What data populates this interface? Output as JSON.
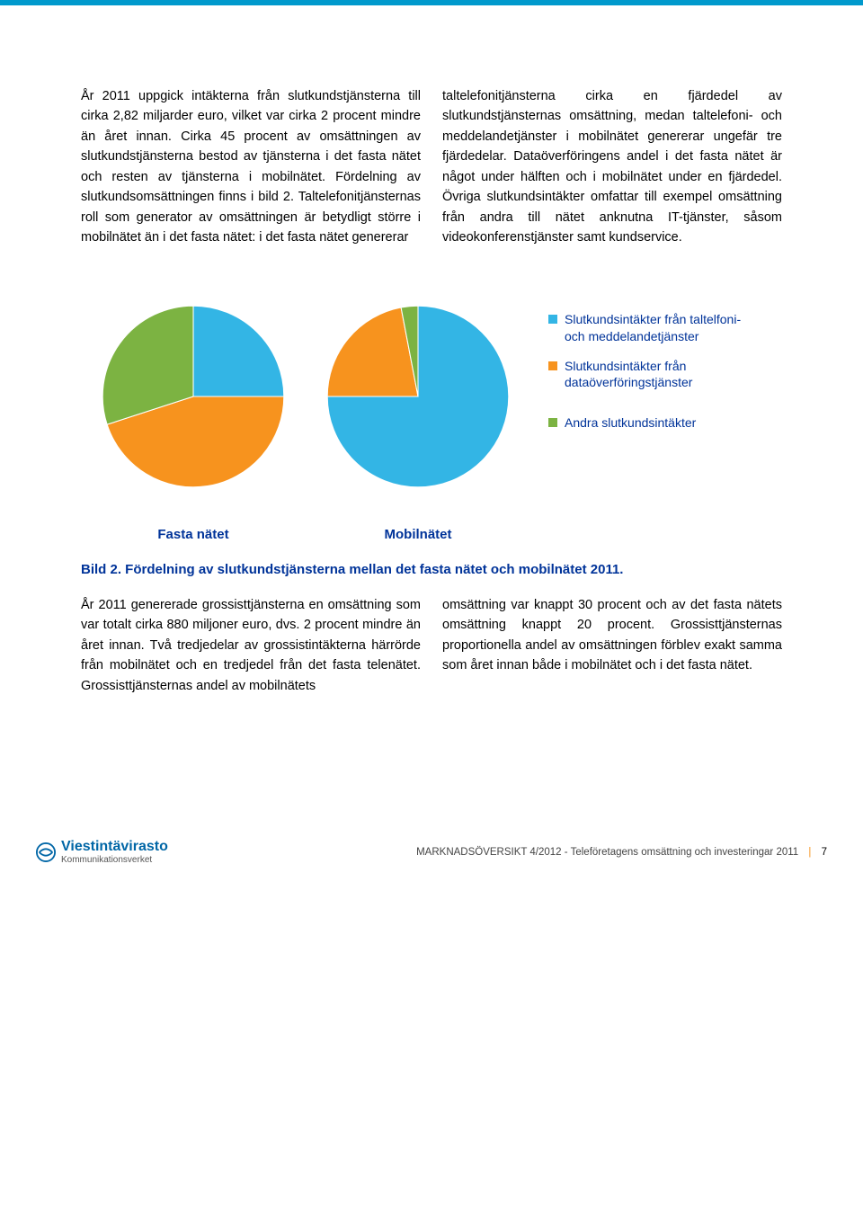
{
  "topbar_color": "#0099cc",
  "paragraph_top": "År 2011 uppgick intäkterna från slutkundstjänsterna till cirka 2,82 miljarder euro, vilket var cirka 2 procent mindre än året innan. Cirka 45 procent av omsättningen av slutkundstjänsterna bestod av tjänsterna i det fasta nätet och resten av tjänsterna i mobilnätet. Fördelning av slutkundsomsättningen finns i bild 2. Taltelefonitjänsternas roll som generator av omsättningen är betydligt större i mobilnätet än i det fasta nätet: i det fasta nätet genererar taltelefonitjänsterna cirka en fjärdedel av slutkundstjänsternas omsättning, medan taltelefoni- och meddelandetjänster i mobilnätet genererar ungefär tre fjärdedelar. Dataöverföringens andel i det fasta nätet är något under hälften och i mobilnätet under en fjärdedel. Övriga slutkundsintäkter omfattar till exempel omsättning från andra till nätet anknutna IT-tjänster, såsom videokonferenstjänster samt kundservice.",
  "charts": {
    "fasta": {
      "type": "pie",
      "label": "Fasta nätet",
      "slices": [
        {
          "value": 25,
          "color": "#33b5e5"
        },
        {
          "value": 45,
          "color": "#f7931e"
        },
        {
          "value": 30,
          "color": "#7cb342"
        }
      ]
    },
    "mobil": {
      "type": "pie",
      "label": "Mobilnätet",
      "slices": [
        {
          "value": 75,
          "color": "#33b5e5"
        },
        {
          "value": 22,
          "color": "#f7931e"
        },
        {
          "value": 3,
          "color": "#7cb342"
        }
      ]
    }
  },
  "legend": [
    {
      "color": "#33b5e5",
      "label": "Slutkundsintäkter från taltelfoni- och meddelandetjänster"
    },
    {
      "color": "#f7931e",
      "label": "Slutkundsintäkter från dataöverföringstjänster"
    },
    {
      "color": "#7cb342",
      "label": "Andra slutkundsintäkter"
    }
  ],
  "caption": "Bild 2. Fördelning av slutkundstjänsterna mellan det fasta nätet och mobilnätet 2011.",
  "paragraph_bottom": "År 2011 genererade grossisttjänsterna en omsättning som var totalt cirka 880 miljoner euro, dvs. 2 procent mindre än året innan. Två tredjedelar av grossistintäkterna härrörde från mobilnätet och en tredjedel från det fasta telenätet. Grossisttjänsternas andel av mobilnätets omsättning var knappt 30 procent och av det fasta nätets omsättning knappt 20 procent. Grossisttjänsternas proportionella andel av omsättningen förblev exakt samma som året innan både i mobilnätet och i det fasta nätet.",
  "footer": {
    "logo_main": "Viestintävirasto",
    "logo_sub": "Kommunikationsverket",
    "logo_color": "#0066a6",
    "text": "MARKNADSÖVERSIKT 4/2012 - Teleföretagens omsättning och investeringar 2011",
    "page": "7"
  }
}
